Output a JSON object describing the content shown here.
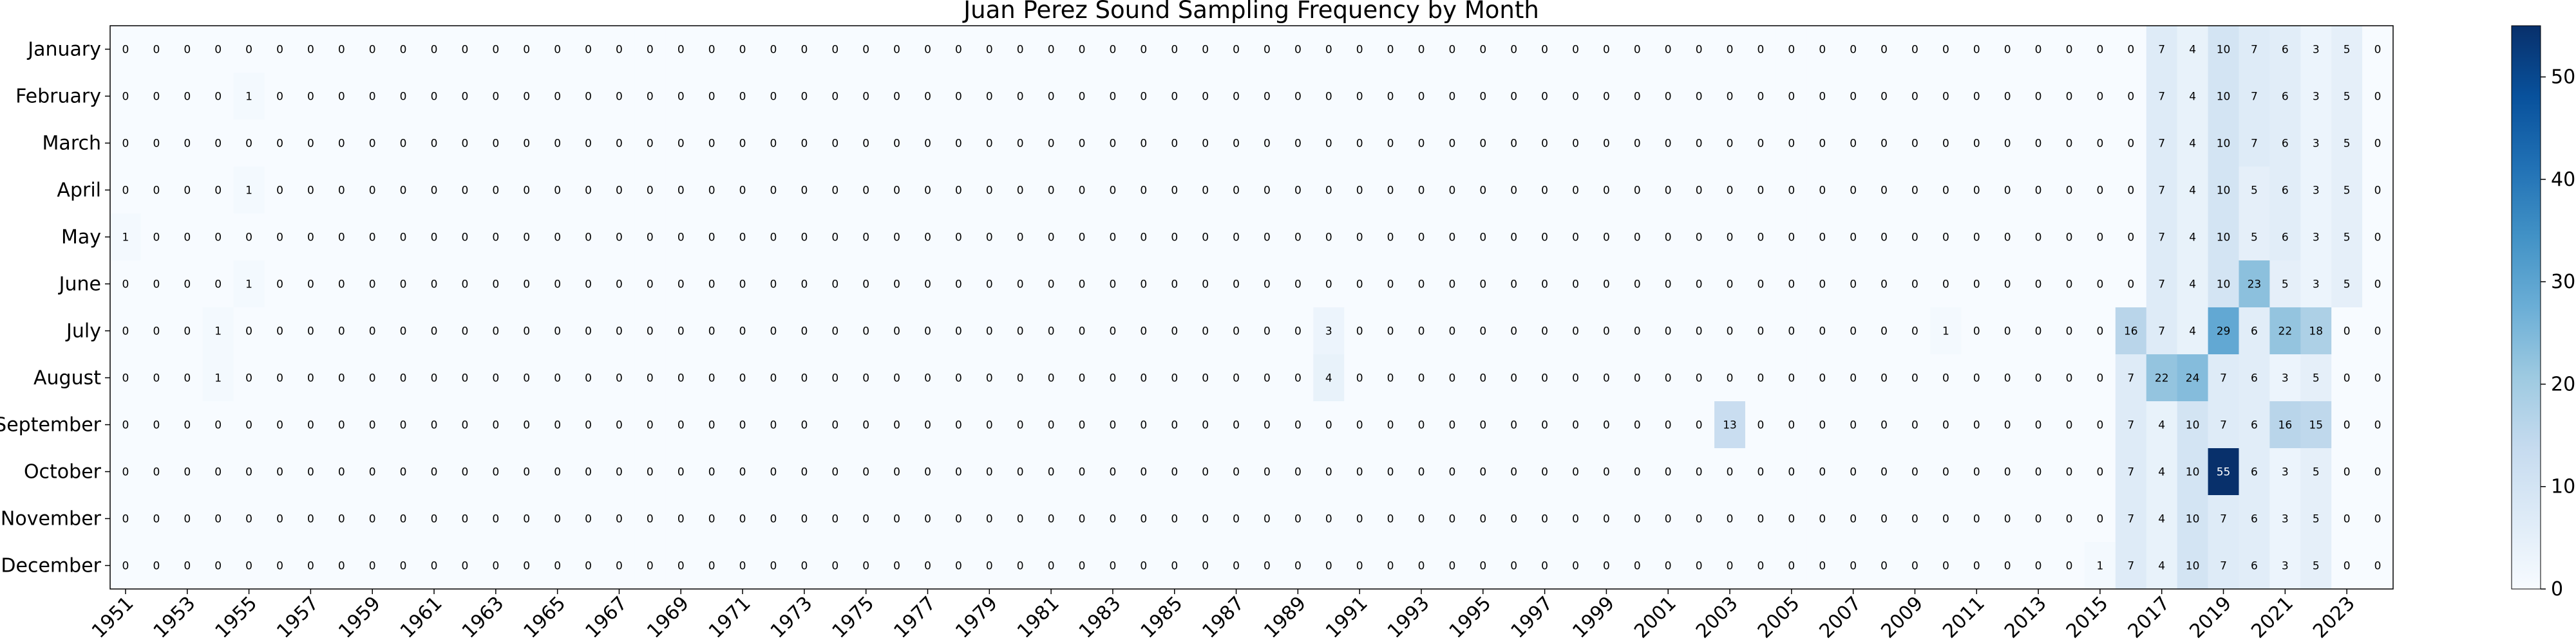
{
  "chart_data": {
    "type": "heatmap",
    "title": "Juan Perez Sound Sampling Frequency by Month",
    "xlabel": "",
    "ylabel": "",
    "rows": [
      "January",
      "February",
      "March",
      "April",
      "May",
      "June",
      "July",
      "August",
      "September",
      "October",
      "November",
      "December"
    ],
    "col_start_year": 1951,
    "col_end_year": 2024,
    "x_tick_labels": [
      "1951",
      "1953",
      "1955",
      "1957",
      "1959",
      "1961",
      "1963",
      "1965",
      "1967",
      "1969",
      "1971",
      "1973",
      "1975",
      "1977",
      "1979",
      "1981",
      "1983",
      "1985",
      "1987",
      "1989",
      "1991",
      "1993",
      "1995",
      "1997",
      "1999",
      "2001",
      "2003",
      "2005",
      "2007",
      "2009",
      "2011",
      "2013",
      "2015",
      "2017",
      "2019",
      "2021",
      "2023"
    ],
    "colorscale": "Blues",
    "vmin": 0,
    "vmax": 55,
    "colorbar_ticks": [
      0,
      10,
      20,
      30,
      40,
      50
    ],
    "nonzero": {
      "January": {
        "2017": 7,
        "2018": 4,
        "2019": 10,
        "2020": 7,
        "2021": 6,
        "2022": 3,
        "2023": 5
      },
      "February": {
        "1955": 1,
        "2017": 7,
        "2018": 4,
        "2019": 10,
        "2020": 7,
        "2021": 6,
        "2022": 3,
        "2023": 5
      },
      "March": {
        "2017": 7,
        "2018": 4,
        "2019": 10,
        "2020": 7,
        "2021": 6,
        "2022": 3,
        "2023": 5
      },
      "April": {
        "1955": 1,
        "2017": 7,
        "2018": 4,
        "2019": 10,
        "2020": 5,
        "2021": 6,
        "2022": 3,
        "2023": 5
      },
      "May": {
        "1951": 1,
        "2017": 7,
        "2018": 4,
        "2019": 10,
        "2020": 5,
        "2021": 6,
        "2022": 3,
        "2023": 5
      },
      "June": {
        "1955": 1,
        "2017": 7,
        "2018": 4,
        "2019": 10,
        "2020": 23,
        "2021": 5,
        "2022": 3,
        "2023": 5
      },
      "July": {
        "1954": 1,
        "1990": 3,
        "2010": 1,
        "2016": 16,
        "2017": 7,
        "2018": 4,
        "2019": 29,
        "2020": 6,
        "2021": 22,
        "2022": 18
      },
      "August": {
        "1954": 1,
        "1990": 4,
        "2016": 7,
        "2017": 22,
        "2018": 24,
        "2019": 7,
        "2020": 6,
        "2021": 3,
        "2022": 5
      },
      "September": {
        "2003": 13,
        "2016": 7,
        "2017": 4,
        "2018": 10,
        "2019": 7,
        "2020": 6,
        "2021": 16,
        "2022": 15
      },
      "October": {
        "2016": 7,
        "2017": 4,
        "2018": 10,
        "2019": 55,
        "2020": 6,
        "2021": 3,
        "2022": 5
      },
      "November": {
        "2016": 7,
        "2017": 4,
        "2018": 10,
        "2019": 7,
        "2020": 6,
        "2021": 3,
        "2022": 5
      },
      "December": {
        "2015": 1,
        "2016": 7,
        "2017": 4,
        "2018": 10,
        "2019": 7,
        "2020": 6,
        "2021": 3,
        "2022": 5
      }
    }
  }
}
